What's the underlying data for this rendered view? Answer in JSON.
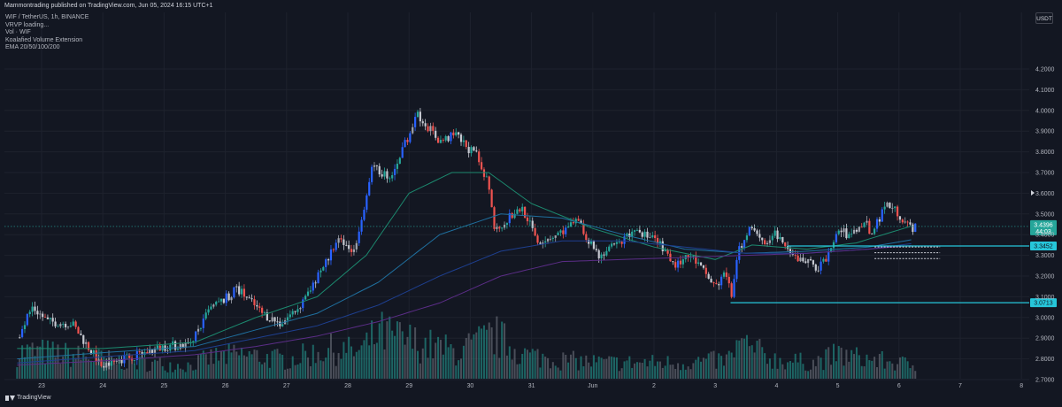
{
  "header": {
    "published_text": "Mammontrading published on TradingView.com, Jun 05, 2024 16:15 UTC+1"
  },
  "legend": [
    "WIF / TetherUS, 1h, BINANCE",
    "VRVP loading...",
    "Vol · WIF",
    "Koalafied Volume Extension",
    "EMA 20/50/100/200"
  ],
  "currency_label": "USDT",
  "brand": "TradingView",
  "colors": {
    "background": "#131722",
    "up": "#26a69a",
    "down": "#ef5350",
    "impulse_up": "#2962ff",
    "ema20": "#1c8a6f",
    "ema50": "#1f6f9e",
    "ema100": "#1e3f8f",
    "ema200": "#5b2d87",
    "level": "#26c6da",
    "last_price": "#26a69a"
  },
  "chart_data": {
    "type": "candlestick",
    "symbol": "WIF / TetherUS",
    "interval": "1h",
    "exchange": "BINANCE",
    "ylim": [
      2.7,
      4.25
    ],
    "y_ticks": [
      "4.2000",
      "4.1000",
      "4.0000",
      "3.9000",
      "3.8000",
      "3.7000",
      "3.6000",
      "3.5000",
      "3.4000",
      "3.3000",
      "3.2000",
      "3.1000",
      "3.0000",
      "2.9000",
      "2.8000",
      "2.7000"
    ],
    "x_ticks": [
      "23",
      "24",
      "25",
      "26",
      "27",
      "28",
      "29",
      "30",
      "31",
      "Jun",
      "2",
      "3",
      "4",
      "5",
      "6",
      "7",
      "8"
    ],
    "price_path": [
      {
        "day": 22.6,
        "price": 2.9
      },
      {
        "day": 22.85,
        "price": 3.05
      },
      {
        "day": 23.1,
        "price": 2.98
      },
      {
        "day": 23.5,
        "price": 2.97
      },
      {
        "day": 23.8,
        "price": 2.84
      },
      {
        "day": 24.0,
        "price": 2.76
      },
      {
        "day": 24.3,
        "price": 2.8
      },
      {
        "day": 24.7,
        "price": 2.83
      },
      {
        "day": 25.0,
        "price": 2.86
      },
      {
        "day": 25.4,
        "price": 2.87
      },
      {
        "day": 25.75,
        "price": 3.04
      },
      {
        "day": 26.0,
        "price": 3.09
      },
      {
        "day": 26.2,
        "price": 3.14
      },
      {
        "day": 26.6,
        "price": 3.02
      },
      {
        "day": 26.9,
        "price": 2.97
      },
      {
        "day": 27.2,
        "price": 3.05
      },
      {
        "day": 27.5,
        "price": 3.2
      },
      {
        "day": 27.85,
        "price": 3.37
      },
      {
        "day": 28.1,
        "price": 3.32
      },
      {
        "day": 28.4,
        "price": 3.72
      },
      {
        "day": 28.7,
        "price": 3.68
      },
      {
        "day": 28.9,
        "price": 3.82
      },
      {
        "day": 29.15,
        "price": 3.98
      },
      {
        "day": 29.5,
        "price": 3.85
      },
      {
        "day": 29.75,
        "price": 3.88
      },
      {
        "day": 30.1,
        "price": 3.78
      },
      {
        "day": 30.3,
        "price": 3.65
      },
      {
        "day": 30.4,
        "price": 3.42
      },
      {
        "day": 30.7,
        "price": 3.5
      },
      {
        "day": 30.85,
        "price": 3.53
      },
      {
        "day": 31.1,
        "price": 3.37
      },
      {
        "day": 31.4,
        "price": 3.4
      },
      {
        "day": 31.6,
        "price": 3.43
      },
      {
        "day": 31.75,
        "price": 3.46
      },
      {
        "day": 32.1,
        "price": 3.3
      },
      {
        "day": 32.4,
        "price": 3.35
      },
      {
        "day": 32.7,
        "price": 3.43
      },
      {
        "day": 33.1,
        "price": 3.35
      },
      {
        "day": 33.3,
        "price": 3.25
      },
      {
        "day": 33.6,
        "price": 3.3
      },
      {
        "day": 34.0,
        "price": 3.15
      },
      {
        "day": 34.2,
        "price": 3.22
      },
      {
        "day": 34.25,
        "price": 3.08
      },
      {
        "day": 34.35,
        "price": 3.3
      },
      {
        "day": 34.6,
        "price": 3.45
      },
      {
        "day": 34.85,
        "price": 3.34
      },
      {
        "day": 35.0,
        "price": 3.41
      },
      {
        "day": 35.2,
        "price": 3.3
      },
      {
        "day": 35.5,
        "price": 3.27
      },
      {
        "day": 35.7,
        "price": 3.24
      },
      {
        "day": 35.85,
        "price": 3.3
      },
      {
        "day": 36.0,
        "price": 3.43
      },
      {
        "day": 36.2,
        "price": 3.39
      },
      {
        "day": 36.45,
        "price": 3.47
      },
      {
        "day": 36.55,
        "price": 3.4
      },
      {
        "day": 36.8,
        "price": 3.55
      },
      {
        "day": 37.0,
        "price": 3.5
      },
      {
        "day": 37.15,
        "price": 3.44
      },
      {
        "day": 37.3,
        "price": 3.43
      }
    ],
    "volume_ylim": [
      0,
      1
    ],
    "volume_profile": [
      {
        "day": 22.6,
        "volume": 0.5
      },
      {
        "day": 23.0,
        "volume": 0.5
      },
      {
        "day": 23.8,
        "volume": 0.4
      },
      {
        "day": 24.5,
        "volume": 0.3
      },
      {
        "day": 25.4,
        "volume": 0.25
      },
      {
        "day": 25.8,
        "volume": 0.4
      },
      {
        "day": 26.3,
        "volume": 0.45
      },
      {
        "day": 27.0,
        "volume": 0.35
      },
      {
        "day": 27.7,
        "volume": 0.55
      },
      {
        "day": 28.2,
        "volume": 0.5
      },
      {
        "day": 28.5,
        "volume": 0.85
      },
      {
        "day": 29.2,
        "volume": 0.65
      },
      {
        "day": 29.8,
        "volume": 0.5
      },
      {
        "day": 30.4,
        "volume": 0.8
      },
      {
        "day": 30.9,
        "volume": 0.45
      },
      {
        "day": 31.5,
        "volume": 0.35
      },
      {
        "day": 32.2,
        "volume": 0.3
      },
      {
        "day": 32.8,
        "volume": 0.3
      },
      {
        "day": 33.4,
        "volume": 0.3
      },
      {
        "day": 34.2,
        "volume": 0.35
      },
      {
        "day": 34.4,
        "volume": 0.65
      },
      {
        "day": 35.0,
        "volume": 0.35
      },
      {
        "day": 35.6,
        "volume": 0.3
      },
      {
        "day": 36.0,
        "volume": 0.45
      },
      {
        "day": 36.6,
        "volume": 0.35
      },
      {
        "day": 37.3,
        "volume": 0.25
      }
    ],
    "ema_lines": [
      {
        "name": "EMA 20",
        "points": [
          {
            "day": 22.6,
            "price": 2.85
          },
          {
            "day": 24.0,
            "price": 2.85
          },
          {
            "day": 25.5,
            "price": 2.88
          },
          {
            "day": 26.5,
            "price": 3.0
          },
          {
            "day": 27.5,
            "price": 3.1
          },
          {
            "day": 28.3,
            "price": 3.3
          },
          {
            "day": 29.0,
            "price": 3.6
          },
          {
            "day": 29.7,
            "price": 3.7
          },
          {
            "day": 30.3,
            "price": 3.7
          },
          {
            "day": 31.0,
            "price": 3.55
          },
          {
            "day": 32.0,
            "price": 3.43
          },
          {
            "day": 33.0,
            "price": 3.34
          },
          {
            "day": 34.0,
            "price": 3.28
          },
          {
            "day": 34.6,
            "price": 3.35
          },
          {
            "day": 35.5,
            "price": 3.33
          },
          {
            "day": 36.3,
            "price": 3.36
          },
          {
            "day": 37.3,
            "price": 3.45
          }
        ]
      },
      {
        "name": "EMA 50",
        "points": [
          {
            "day": 22.6,
            "price": 2.8
          },
          {
            "day": 24.0,
            "price": 2.83
          },
          {
            "day": 25.5,
            "price": 2.86
          },
          {
            "day": 26.5,
            "price": 2.94
          },
          {
            "day": 27.5,
            "price": 3.02
          },
          {
            "day": 28.5,
            "price": 3.17
          },
          {
            "day": 29.5,
            "price": 3.4
          },
          {
            "day": 30.5,
            "price": 3.5
          },
          {
            "day": 31.5,
            "price": 3.48
          },
          {
            "day": 32.5,
            "price": 3.4
          },
          {
            "day": 33.5,
            "price": 3.33
          },
          {
            "day": 34.5,
            "price": 3.31
          },
          {
            "day": 35.5,
            "price": 3.32
          },
          {
            "day": 36.5,
            "price": 3.34
          },
          {
            "day": 37.3,
            "price": 3.38
          }
        ]
      },
      {
        "name": "EMA 100",
        "points": [
          {
            "day": 22.6,
            "price": 2.78
          },
          {
            "day": 24.0,
            "price": 2.81
          },
          {
            "day": 25.5,
            "price": 2.84
          },
          {
            "day": 26.5,
            "price": 2.9
          },
          {
            "day": 27.5,
            "price": 2.96
          },
          {
            "day": 28.5,
            "price": 3.06
          },
          {
            "day": 29.5,
            "price": 3.2
          },
          {
            "day": 30.5,
            "price": 3.32
          },
          {
            "day": 31.5,
            "price": 3.37
          },
          {
            "day": 32.5,
            "price": 3.37
          },
          {
            "day": 33.5,
            "price": 3.34
          },
          {
            "day": 34.5,
            "price": 3.31
          },
          {
            "day": 35.5,
            "price": 3.31
          },
          {
            "day": 36.5,
            "price": 3.33
          },
          {
            "day": 37.3,
            "price": 3.36
          }
        ]
      },
      {
        "name": "EMA 200",
        "points": [
          {
            "day": 22.6,
            "price": 2.77
          },
          {
            "day": 24.0,
            "price": 2.79
          },
          {
            "day": 25.5,
            "price": 2.82
          },
          {
            "day": 26.5,
            "price": 2.86
          },
          {
            "day": 27.5,
            "price": 2.91
          },
          {
            "day": 28.5,
            "price": 2.98
          },
          {
            "day": 29.5,
            "price": 3.07
          },
          {
            "day": 30.5,
            "price": 3.2
          },
          {
            "day": 31.5,
            "price": 3.27
          },
          {
            "day": 32.5,
            "price": 3.28
          },
          {
            "day": 33.5,
            "price": 3.29
          },
          {
            "day": 34.5,
            "price": 3.3
          },
          {
            "day": 35.5,
            "price": 3.31
          },
          {
            "day": 36.5,
            "price": 3.33
          },
          {
            "day": 37.3,
            "price": 3.35
          }
        ]
      }
    ],
    "levels": [
      {
        "price": 3.3452,
        "label": "3.3452",
        "from_day": 35.18
      },
      {
        "price": 3.0713,
        "label": "3.0713",
        "from_day": 34.25
      }
    ],
    "dashed_levels": [
      3.3405,
      3.3125,
      3.2845
    ],
    "dashed_from_day": 36.6,
    "dashed_to_day": 37.67,
    "last_price": {
      "price": 3.4396,
      "label": "3.4396",
      "countdown": "44:03"
    },
    "trend_impulses": [
      {
        "from_day": 28.35,
        "to_day": 28.42
      }
    ]
  }
}
